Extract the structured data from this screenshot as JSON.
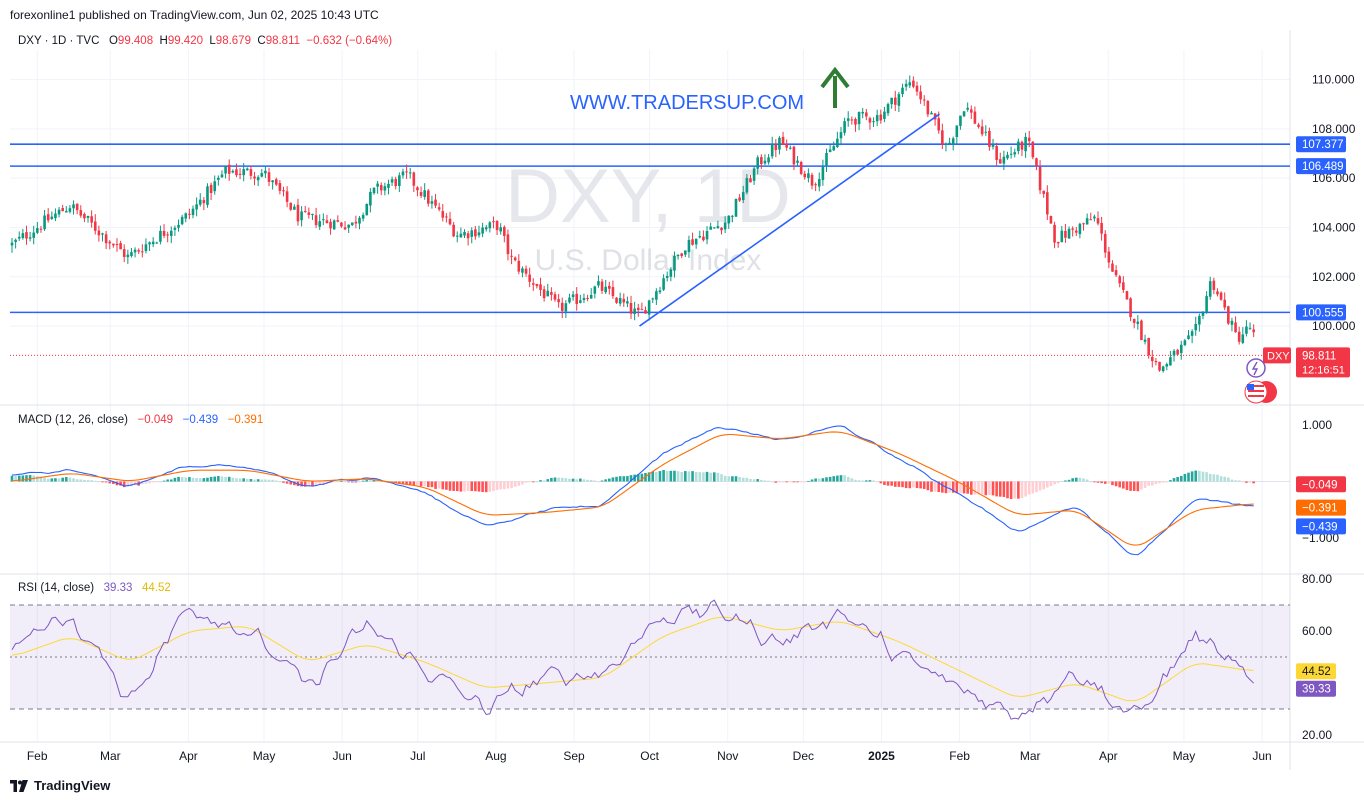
{
  "header": {
    "published": "forexonline1 published on TradingView.com, Jun 02, 2025 10:43 UTC"
  },
  "symbol": {
    "name": "DXY · 1D · TVC",
    "o_label": "O",
    "o": "99.408",
    "h_label": "H",
    "h": "99.420",
    "l_label": "L",
    "l": "98.679",
    "c_label": "C",
    "c": "98.811",
    "change": "−0.632 (−0.64%)",
    "watermark_main": "DXY, 1D",
    "watermark_sub": "U.S. Dollar Index",
    "promo": "WWW.TRADERSUP.COM",
    "price_tag": "DXY",
    "last_price": "98.811",
    "countdown": "12:16:51"
  },
  "levels": [
    {
      "value": 107.377,
      "label": "107.377"
    },
    {
      "value": 106.489,
      "label": "106.489"
    },
    {
      "value": 100.555,
      "label": "100.555"
    }
  ],
  "macd_legend": {
    "name": "MACD (12, 26, close)",
    "hist": "−0.049",
    "macd": "−0.439",
    "signal": "−0.391"
  },
  "rsi_legend": {
    "name": "RSI (14, close)",
    "rsi": "39.33",
    "ma": "44.52"
  },
  "colors": {
    "up": "#089981",
    "down": "#f23645",
    "level": "#2962ff",
    "macd": "#2962ff",
    "signal": "#ff6d00",
    "rsi": "#7e57c2",
    "rsi_ma": "#fdd835",
    "green_arrow": "#2e7d32"
  },
  "footer": {
    "brand": "TradingView"
  },
  "chart_data": [
    {
      "type": "candlestick",
      "title": "DXY, 1D",
      "y_ticks": [
        "110.000",
        "108.000",
        "106.000",
        "104.000",
        "102.000",
        "100.000"
      ],
      "ylim": [
        97.0,
        111.2
      ],
      "x_ticks": [
        "Feb",
        "Mar",
        "Apr",
        "May",
        "Jun",
        "Jul",
        "Aug",
        "Sep",
        "Oct",
        "Nov",
        "Dec",
        "2025",
        "Feb",
        "Mar",
        "Apr",
        "May",
        "Jun"
      ],
      "close_path": [
        [
          "2024-01-22",
          103.3
        ],
        [
          "2024-02-05",
          104.3
        ],
        [
          "2024-02-14",
          104.9
        ],
        [
          "2024-03-08",
          102.8
        ],
        [
          "2024-04-01",
          104.5
        ],
        [
          "2024-04-16",
          106.3
        ],
        [
          "2024-05-01",
          106.2
        ],
        [
          "2024-05-15",
          104.4
        ],
        [
          "2024-06-05",
          104.1
        ],
        [
          "2024-06-14",
          105.5
        ],
        [
          "2024-06-27",
          106.1
        ],
        [
          "2024-07-17",
          103.7
        ],
        [
          "2024-08-02",
          104.1
        ],
        [
          "2024-08-07",
          102.7
        ],
        [
          "2024-08-26",
          100.7
        ],
        [
          "2024-09-11",
          101.6
        ],
        [
          "2024-09-27",
          100.4
        ],
        [
          "2024-10-15",
          103.3
        ],
        [
          "2024-11-01",
          104.3
        ],
        [
          "2024-11-13",
          106.6
        ],
        [
          "2024-11-22",
          107.5
        ],
        [
          "2024-12-05",
          105.8
        ],
        [
          "2024-12-19",
          108.4
        ],
        [
          "2024-12-31",
          108.5
        ],
        [
          "2025-01-13",
          110.0
        ],
        [
          "2025-01-27",
          107.2
        ],
        [
          "2025-02-03",
          109.0
        ],
        [
          "2025-02-17",
          106.7
        ],
        [
          "2025-02-28",
          107.5
        ],
        [
          "2025-03-11",
          103.5
        ],
        [
          "2025-03-27",
          104.4
        ],
        [
          "2025-04-03",
          102.1
        ],
        [
          "2025-04-21",
          98.2
        ],
        [
          "2025-05-05",
          99.6
        ],
        [
          "2025-05-12",
          101.9
        ],
        [
          "2025-05-22",
          99.5
        ],
        [
          "2025-05-28",
          100.0
        ],
        [
          "2025-05-30",
          98.8
        ]
      ]
    },
    {
      "type": "line",
      "title": "MACD (12, 26, close)",
      "y_ticks": [
        "1.000",
        "−1.000"
      ],
      "ylim": [
        -1.6,
        1.3
      ],
      "series": [
        {
          "name": "MACD",
          "values": [
            0.1,
            0.2,
            -0.1,
            0.3,
            0.25,
            -0.1,
            0.1,
            -0.2,
            -0.8,
            -0.5,
            -0.4,
            0.5,
            1.0,
            0.7,
            1.0,
            0.4,
            -0.2,
            -0.9,
            -0.4,
            -1.4,
            -0.3,
            -0.44
          ]
        },
        {
          "name": "Signal",
          "values": [
            0.0,
            0.15,
            0.0,
            0.2,
            0.2,
            0.0,
            0.05,
            -0.1,
            -0.6,
            -0.55,
            -0.45,
            0.3,
            0.85,
            0.75,
            0.9,
            0.5,
            0.0,
            -0.6,
            -0.5,
            -1.2,
            -0.5,
            -0.39
          ]
        }
      ]
    },
    {
      "type": "line",
      "title": "RSI (14, close)",
      "y_ticks": [
        "80.00",
        "60.00",
        "20.00"
      ],
      "ylim": [
        20,
        80
      ],
      "bands": [
        30,
        70
      ],
      "series": [
        {
          "name": "RSI",
          "values": [
            56,
            65,
            34,
            70,
            60,
            38,
            62,
            45,
            30,
            42,
            44,
            66,
            68,
            55,
            68,
            50,
            38,
            28,
            45,
            26,
            58,
            39.33
          ]
        },
        {
          "name": "RSI MA",
          "values": [
            50,
            58,
            48,
            60,
            62,
            48,
            55,
            48,
            38,
            40,
            42,
            58,
            66,
            60,
            64,
            56,
            45,
            34,
            40,
            32,
            48,
            44.52
          ]
        }
      ]
    }
  ]
}
